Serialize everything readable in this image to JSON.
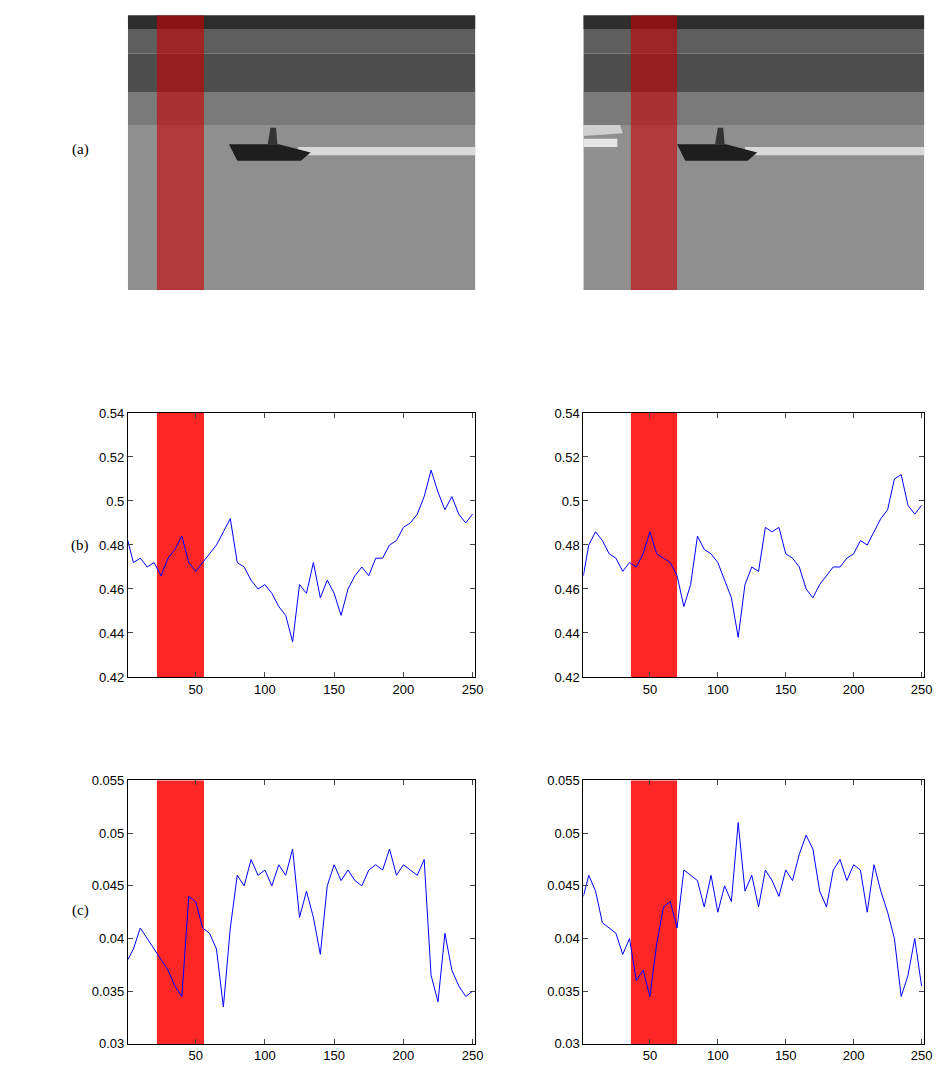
{
  "row_labels": [
    "(a)",
    "(b)",
    "(c)"
  ],
  "chart_data": [
    {
      "type": "line",
      "grid": false,
      "band": [
        22,
        56
      ],
      "xlim": [
        1,
        252
      ],
      "xticks": [
        50,
        100,
        150,
        200,
        250
      ],
      "ylim": [
        0.42,
        0.54
      ],
      "yticks": [
        0.42,
        0.44,
        0.46,
        0.48,
        0.5,
        0.52,
        0.54
      ],
      "x": [
        1,
        5,
        10,
        15,
        20,
        25,
        30,
        35,
        40,
        45,
        50,
        55,
        60,
        65,
        70,
        75,
        80,
        85,
        90,
        95,
        100,
        105,
        110,
        115,
        120,
        125,
        130,
        135,
        140,
        145,
        150,
        155,
        160,
        165,
        170,
        175,
        180,
        185,
        190,
        195,
        200,
        205,
        210,
        215,
        220,
        225,
        230,
        235,
        240,
        245,
        250
      ],
      "series": [
        {
          "color": "#0000ff",
          "values": [
            0.482,
            0.472,
            0.474,
            0.47,
            0.472,
            0.466,
            0.474,
            0.478,
            0.484,
            0.472,
            0.468,
            0.472,
            0.476,
            0.48,
            0.486,
            0.492,
            0.472,
            0.47,
            0.464,
            0.46,
            0.462,
            0.458,
            0.452,
            0.448,
            0.436,
            0.462,
            0.458,
            0.472,
            0.456,
            0.464,
            0.458,
            0.448,
            0.46,
            0.466,
            0.47,
            0.466,
            0.474,
            0.474,
            0.48,
            0.482,
            0.488,
            0.49,
            0.494,
            0.502,
            0.514,
            0.504,
            0.496,
            0.502,
            0.494,
            0.49,
            0.494
          ]
        }
      ]
    },
    {
      "type": "line",
      "grid": false,
      "band": [
        36,
        70
      ],
      "xlim": [
        1,
        252
      ],
      "xticks": [
        50,
        100,
        150,
        200,
        250
      ],
      "ylim": [
        0.42,
        0.54
      ],
      "yticks": [
        0.42,
        0.44,
        0.46,
        0.48,
        0.5,
        0.52,
        0.54
      ],
      "x": [
        1,
        5,
        10,
        15,
        20,
        25,
        30,
        35,
        40,
        45,
        50,
        55,
        60,
        65,
        70,
        75,
        80,
        85,
        90,
        95,
        100,
        105,
        110,
        115,
        120,
        125,
        130,
        135,
        140,
        145,
        150,
        155,
        160,
        165,
        170,
        175,
        180,
        185,
        190,
        195,
        200,
        205,
        210,
        215,
        220,
        225,
        230,
        235,
        240,
        245,
        250
      ],
      "series": [
        {
          "color": "#0000ff",
          "values": [
            0.466,
            0.48,
            0.486,
            0.482,
            0.476,
            0.474,
            0.468,
            0.472,
            0.47,
            0.476,
            0.486,
            0.476,
            0.474,
            0.472,
            0.466,
            0.452,
            0.462,
            0.484,
            0.478,
            0.476,
            0.472,
            0.464,
            0.456,
            0.438,
            0.462,
            0.47,
            0.468,
            0.488,
            0.486,
            0.488,
            0.476,
            0.474,
            0.47,
            0.46,
            0.456,
            0.462,
            0.466,
            0.47,
            0.47,
            0.474,
            0.476,
            0.482,
            0.48,
            0.486,
            0.492,
            0.496,
            0.51,
            0.512,
            0.498,
            0.494,
            0.498
          ]
        }
      ]
    },
    {
      "type": "line",
      "grid": false,
      "band": [
        22,
        56
      ],
      "xlim": [
        1,
        252
      ],
      "xticks": [
        50,
        100,
        150,
        200,
        250
      ],
      "ylim": [
        0.03,
        0.055
      ],
      "yticks": [
        0.03,
        0.035,
        0.04,
        0.045,
        0.05,
        0.055
      ],
      "x": [
        1,
        5,
        10,
        15,
        20,
        25,
        30,
        35,
        40,
        45,
        50,
        55,
        60,
        65,
        70,
        75,
        80,
        85,
        90,
        95,
        100,
        105,
        110,
        115,
        120,
        125,
        130,
        135,
        140,
        145,
        150,
        155,
        160,
        165,
        170,
        175,
        180,
        185,
        190,
        195,
        200,
        205,
        210,
        215,
        220,
        225,
        230,
        235,
        240,
        245,
        250
      ],
      "series": [
        {
          "color": "#0000ff",
          "values": [
            0.038,
            0.039,
            0.041,
            0.04,
            0.039,
            0.038,
            0.037,
            0.0355,
            0.0345,
            0.044,
            0.0435,
            0.041,
            0.0405,
            0.039,
            0.0335,
            0.041,
            0.046,
            0.045,
            0.0475,
            0.046,
            0.0465,
            0.045,
            0.047,
            0.046,
            0.0485,
            0.042,
            0.0445,
            0.042,
            0.0385,
            0.045,
            0.047,
            0.0455,
            0.0465,
            0.0455,
            0.045,
            0.0465,
            0.047,
            0.0465,
            0.0485,
            0.046,
            0.047,
            0.0465,
            0.046,
            0.0475,
            0.0365,
            0.034,
            0.0405,
            0.037,
            0.0355,
            0.0345,
            0.035
          ]
        }
      ]
    },
    {
      "type": "line",
      "grid": false,
      "band": [
        36,
        70
      ],
      "xlim": [
        1,
        252
      ],
      "xticks": [
        50,
        100,
        150,
        200,
        250
      ],
      "ylim": [
        0.03,
        0.055
      ],
      "yticks": [
        0.03,
        0.035,
        0.04,
        0.045,
        0.05,
        0.055
      ],
      "x": [
        1,
        5,
        10,
        15,
        20,
        25,
        30,
        35,
        40,
        45,
        50,
        55,
        60,
        65,
        70,
        75,
        80,
        85,
        90,
        95,
        100,
        105,
        110,
        115,
        120,
        125,
        130,
        135,
        140,
        145,
        150,
        155,
        160,
        165,
        170,
        175,
        180,
        185,
        190,
        195,
        200,
        205,
        210,
        215,
        220,
        225,
        230,
        235,
        240,
        245,
        250
      ],
      "series": [
        {
          "color": "#0000ff",
          "values": [
            0.044,
            0.046,
            0.0445,
            0.0415,
            0.041,
            0.0405,
            0.0385,
            0.04,
            0.036,
            0.037,
            0.0345,
            0.0395,
            0.043,
            0.0435,
            0.041,
            0.0465,
            0.046,
            0.0455,
            0.043,
            0.046,
            0.0425,
            0.045,
            0.0435,
            0.051,
            0.0445,
            0.046,
            0.043,
            0.0465,
            0.0455,
            0.044,
            0.0465,
            0.0455,
            0.048,
            0.0498,
            0.0485,
            0.0445,
            0.043,
            0.0465,
            0.0475,
            0.0455,
            0.047,
            0.0465,
            0.0425,
            0.047,
            0.0445,
            0.0425,
            0.04,
            0.0345,
            0.0365,
            0.04,
            0.0355
          ]
        }
      ]
    }
  ]
}
